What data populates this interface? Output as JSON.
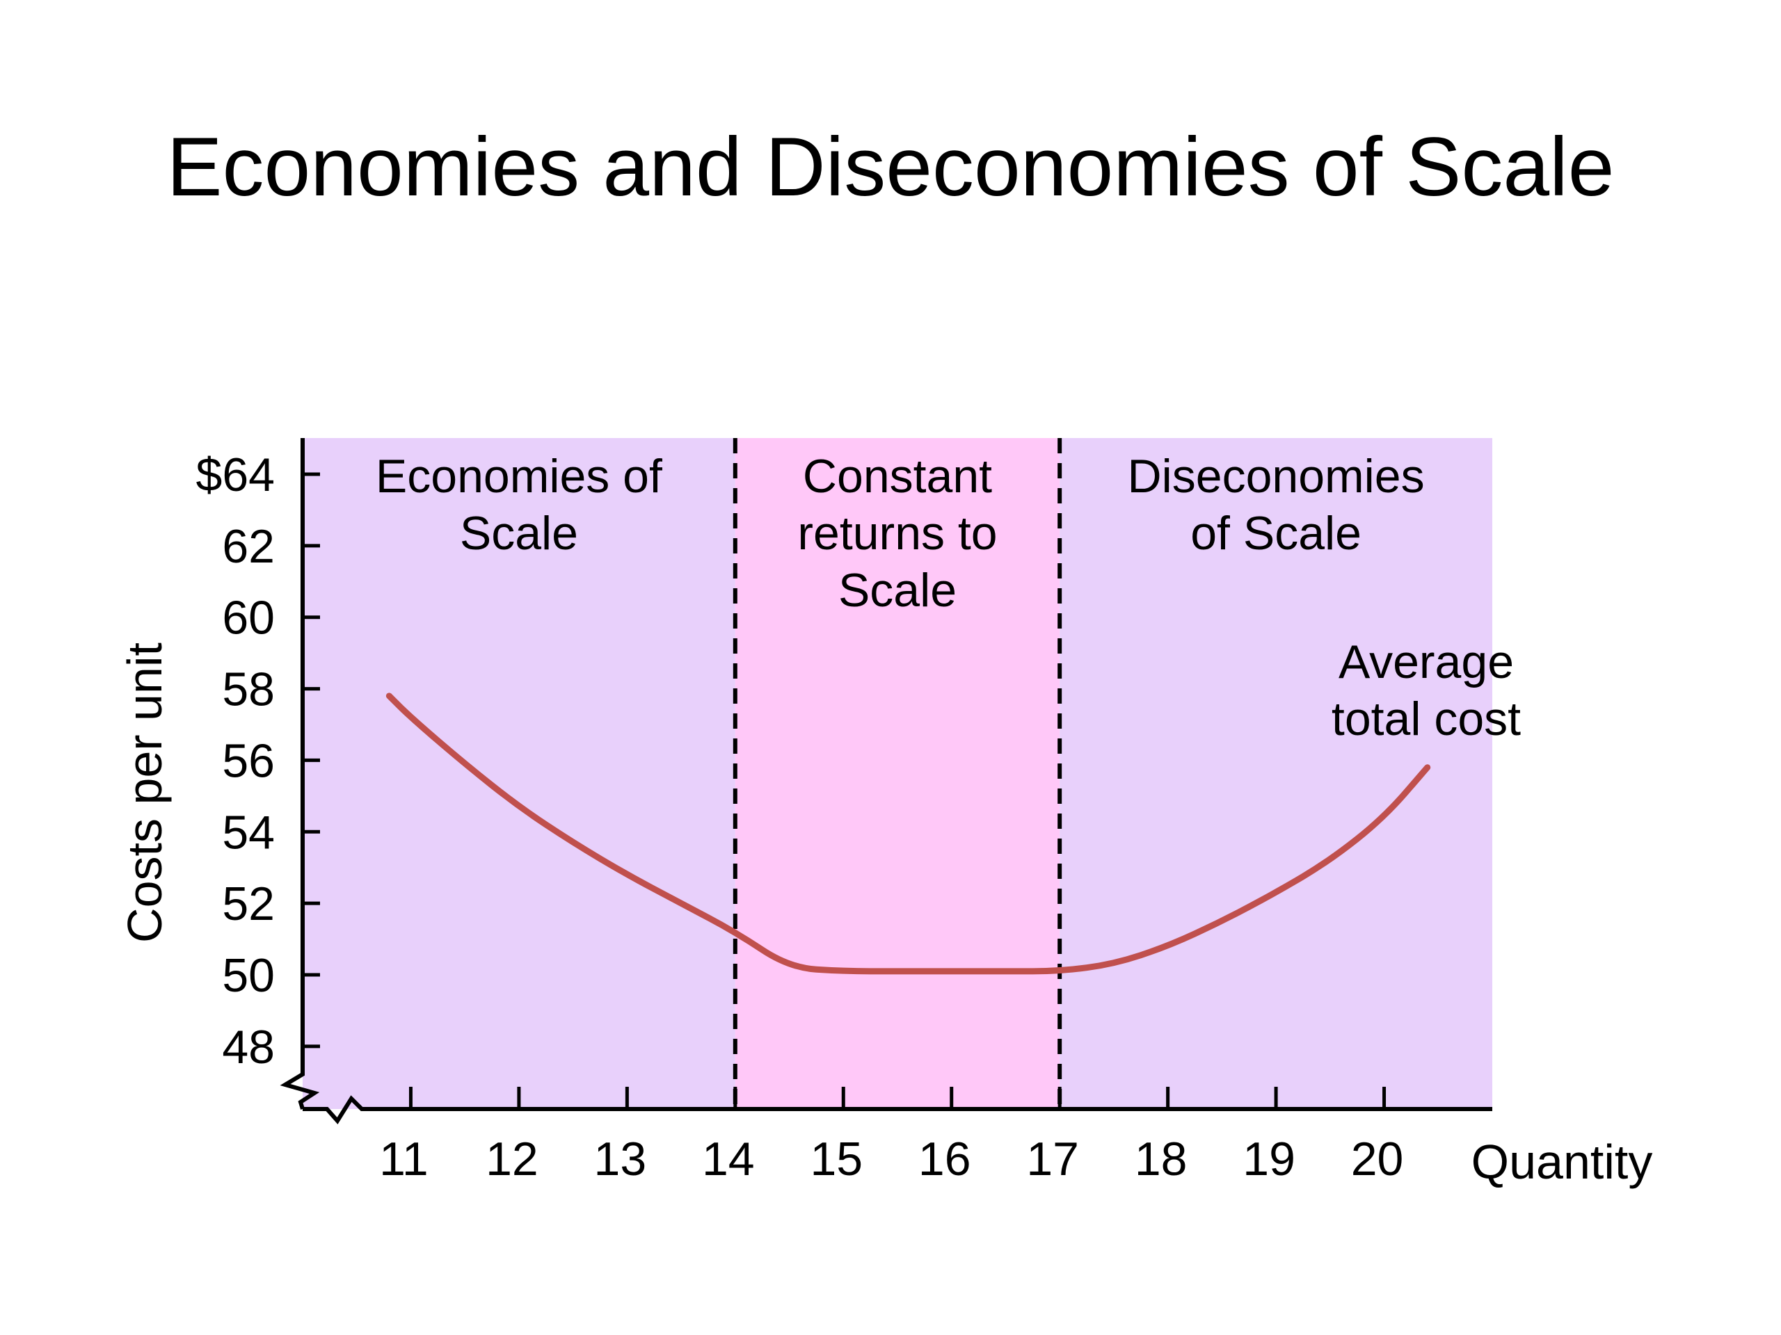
{
  "title": "Economies and Diseconomies of Scale",
  "chart_data": {
    "type": "line",
    "xlabel": "Quantity",
    "ylabel": "Costs per unit",
    "xlim": [
      10,
      21
    ],
    "ylim": [
      47.5,
      65
    ],
    "x_ticks": [
      11,
      12,
      13,
      14,
      15,
      16,
      17,
      18,
      19,
      20
    ],
    "x_tick_labels": [
      "11",
      "12",
      "13",
      "14",
      "15",
      "16",
      "17",
      "18",
      "19",
      "20"
    ],
    "y_ticks": [
      48,
      50,
      52,
      54,
      56,
      58,
      60,
      62,
      64
    ],
    "y_tick_labels": [
      "48",
      "50",
      "52",
      "54",
      "56",
      "58",
      "60",
      "62",
      "$64"
    ],
    "axis_break": true,
    "regions": [
      {
        "label_lines": [
          "Economies of",
          "Scale"
        ],
        "x_from": 10,
        "x_to": 14,
        "color": "#E8D0FB"
      },
      {
        "label_lines": [
          "Constant",
          "returns to",
          "Scale"
        ],
        "x_from": 14,
        "x_to": 17,
        "color": "#FFC8F8"
      },
      {
        "label_lines": [
          "Diseconomies",
          "of Scale"
        ],
        "x_from": 17,
        "x_to": 21,
        "color": "#E8D0FB"
      }
    ],
    "dividers_x": [
      14,
      17
    ],
    "series": [
      {
        "name_lines": [
          "Average",
          "total cost"
        ],
        "color": "#C0504D",
        "x": [
          10.8,
          11,
          11.5,
          12,
          12.5,
          13,
          13.5,
          14,
          14.5,
          15,
          15.5,
          16,
          16.5,
          17,
          17.5,
          18,
          18.5,
          19,
          19.5,
          20,
          20.4
        ],
        "y": [
          57.8,
          57.2,
          55.9,
          54.7,
          53.7,
          52.8,
          52.0,
          51.2,
          50.2,
          50.1,
          50.1,
          50.1,
          50.1,
          50.1,
          50.3,
          50.8,
          51.5,
          52.3,
          53.2,
          54.4,
          55.8
        ]
      }
    ]
  }
}
